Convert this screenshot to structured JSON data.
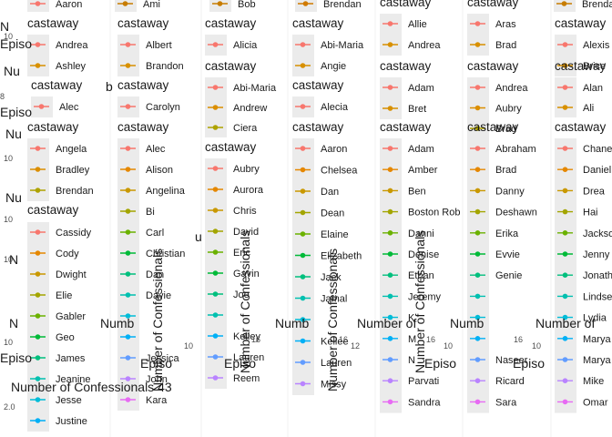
{
  "chart_data": {
    "type": "line",
    "description_note": "",
    "legend_title": "castaway",
    "x_axis_label": "Episode",
    "y_axis_label": "Number of Confessionals",
    "extra_title": "Number of Confessionals 43",
    "panels": [
      {
        "legend_title": "castaway",
        "castaways": [
          "Aaron"
        ],
        "colors": [
          "#F8766D"
        ]
      },
      {
        "legend_title": "castaway",
        "castaways": [
          "Ami"
        ],
        "colors": [
          "#C77C00"
        ]
      },
      {
        "legend_title": "castaway",
        "castaways": [
          "Bob"
        ],
        "colors": [
          "#C77C00"
        ]
      },
      {
        "legend_title": "castaway",
        "castaways": [
          "Brendan"
        ],
        "colors": [
          "#D07A00"
        ]
      },
      {
        "legend_title": "castaway",
        "castaways": [
          "Brenda"
        ],
        "colors": [
          "#C77C00"
        ]
      },
      {
        "legend_title": "castaway",
        "castaways": [
          "Andrea",
          "Ashley"
        ],
        "colors": [
          "#F8766D",
          "#D89000"
        ]
      },
      {
        "legend_title": "castaway",
        "castaways": [
          "Albert",
          "Brandon"
        ],
        "colors": [
          "#F8766D",
          "#D89000"
        ]
      },
      {
        "legend_title": "castaway",
        "castaways": [
          "Alicia"
        ],
        "colors": [
          "#F8766D"
        ]
      },
      {
        "legend_title": "castaway",
        "castaways": [
          "Abi-Maria",
          "Angie"
        ],
        "colors": [
          "#F8766D",
          "#D89000"
        ]
      },
      {
        "legend_title": "castaway",
        "castaways": [
          "Allie",
          "Andrea"
        ],
        "colors": [
          "#F8766D",
          "#D89000"
        ]
      },
      {
        "legend_title": "castaway",
        "castaways": [
          "Aras",
          "Brad"
        ],
        "colors": [
          "#F8766D",
          "#D89000"
        ]
      },
      {
        "legend_title": "castaway",
        "castaways": [
          "Alexis",
          "Brice"
        ],
        "colors": [
          "#F8766D",
          "#D89000"
        ]
      },
      {
        "legend_title": "castaway",
        "castaways": [
          "Alec"
        ],
        "colors": [
          "#F8766D"
        ]
      },
      {
        "legend_title": "castaway",
        "castaways": [
          "Carolyn"
        ],
        "colors": [
          "#F8766D"
        ]
      },
      {
        "legend_title": "castaway",
        "castaways": [
          "Abi-Maria",
          "Andrew",
          "Ciera"
        ],
        "colors": [
          "#F8766D",
          "#DB8E00",
          "#AEA200"
        ]
      },
      {
        "legend_title": "castaway",
        "castaways": [
          "Alecia"
        ],
        "colors": [
          "#F8766D"
        ]
      },
      {
        "legend_title": "castaway",
        "castaways": [
          "Adam",
          "Bret"
        ],
        "colors": [
          "#F8766D",
          "#D89000"
        ]
      },
      {
        "legend_title": "castaway",
        "castaways": [
          "Andrea",
          "Aubry",
          "Brad"
        ],
        "colors": [
          "#F8766D",
          "#DB8E00",
          "#AEA200"
        ]
      },
      {
        "legend_title": "castaway",
        "castaways": [
          "Alan",
          "Ali"
        ],
        "colors": [
          "#F8766D",
          "#D89000"
        ]
      },
      {
        "legend_title": "castaway",
        "castaways": [
          "Angela",
          "Bradley",
          "Brendan"
        ],
        "colors": [
          "#F8766D",
          "#DB8E00",
          "#AEA200"
        ]
      },
      {
        "legend_title": "castaway",
        "castaways": [
          "Alec",
          "Alison",
          "Angelina",
          "Bi",
          "Carl",
          "Christian",
          "Dan",
          "Davie",
          "",
          "",
          "Jessica",
          "John",
          "Kara"
        ],
        "colors": [
          "#F8766D",
          "#E58700",
          "#C99800",
          "#A3A500",
          "#6BB100",
          "#00BA38",
          "#00BF7D",
          "#00C0AF",
          "#00BCD8",
          "#00B0F6",
          "#619CFF",
          "#B983FF",
          "#E76BF3"
        ]
      },
      {
        "legend_title": "castaway",
        "castaways": [
          "Aubry",
          "Aurora",
          "Chris",
          "David",
          "Eric",
          "Gavin",
          "Joe",
          "",
          "Kelley",
          "Lauren",
          "Reem"
        ],
        "colors": [
          "#F8766D",
          "#E58700",
          "#C99800",
          "#A3A500",
          "#6BB100",
          "#00BA38",
          "#00BF7D",
          "#00C0AF",
          "#00B0F6",
          "#619CFF",
          "#B983FF"
        ]
      },
      {
        "legend_title": "castaway",
        "castaways": [
          "Aaron",
          "Chelsea",
          "Dan",
          "Dean",
          "Elaine",
          "Elizabeth",
          "Jack",
          "Jamal",
          "",
          "Kellee",
          "Lauren",
          "Missy"
        ],
        "colors": [
          "#F8766D",
          "#E58700",
          "#C99800",
          "#A3A500",
          "#6BB100",
          "#00BA38",
          "#00BF7D",
          "#00C0AF",
          "#00BCD8",
          "#00B0F6",
          "#619CFF",
          "#B983FF"
        ]
      },
      {
        "legend_title": "castaway",
        "castaways": [
          "Adam",
          "Amber",
          "Ben",
          "Boston Rob",
          "Danni",
          "Denise",
          "Ethan",
          "Jeremy",
          "K",
          "M",
          "N",
          "Parvati",
          "Sandra"
        ],
        "colors": [
          "#F8766D",
          "#E58700",
          "#C99800",
          "#A3A500",
          "#6BB100",
          "#00BA38",
          "#00BF7D",
          "#00C0AF",
          "#00BCD8",
          "#00B0F6",
          "#619CFF",
          "#B983FF",
          "#E76BF3"
        ]
      },
      {
        "legend_title": "castaway",
        "castaways": [
          "Abraham",
          "Brad",
          "Danny",
          "Deshawn",
          "Erika",
          "Evvie",
          "Genie",
          "",
          "",
          "",
          "Naseer",
          "Ricard",
          "Sara"
        ],
        "colors": [
          "#F8766D",
          "#E58700",
          "#C99800",
          "#A3A500",
          "#6BB100",
          "#00BA38",
          "#00BF7D",
          "#00C0AF",
          "#00BCD8",
          "#00B0F6",
          "#619CFF",
          "#B983FF",
          "#E76BF3"
        ]
      },
      {
        "legend_title": "castaway",
        "castaways": [
          "Chane",
          "Daniel",
          "Drea",
          "Hai",
          "Jackso",
          "Jenny",
          "Jonath",
          "Lindse",
          "Lydia",
          "Marya",
          "Marya",
          "Mike",
          "Omar"
        ],
        "colors": [
          "#F8766D",
          "#E58700",
          "#C99800",
          "#A3A500",
          "#6BB100",
          "#00BA38",
          "#00BF7D",
          "#00C0AF",
          "#00BCD8",
          "#00B0F6",
          "#619CFF",
          "#B983FF",
          "#E76BF3"
        ]
      },
      {
        "legend_title": "castaway",
        "castaways": [
          "Cassidy",
          "Cody",
          "Dwight",
          "Elie",
          "Gabler",
          "Geo",
          "James",
          "Jeanine",
          "Jesse",
          "Justine"
        ],
        "colors": [
          "#F8766D",
          "#E58700",
          "#C99800",
          "#A3A500",
          "#6BB100",
          "#00BA38",
          "#00BF7D",
          "#00C0AF",
          "#00BCD8",
          "#00B0F6"
        ]
      }
    ],
    "fragments": {
      "num_left": "Nu",
      "num_short": "N",
      "numb": "Numb",
      "number_of": "Number of",
      "episode_frag": "Episo",
      "tick_10": "10",
      "tick_16": "16",
      "tick_12": "12",
      "tick_20": "2.0",
      "b": "b",
      "u": "u",
      "amp": "8"
    }
  }
}
